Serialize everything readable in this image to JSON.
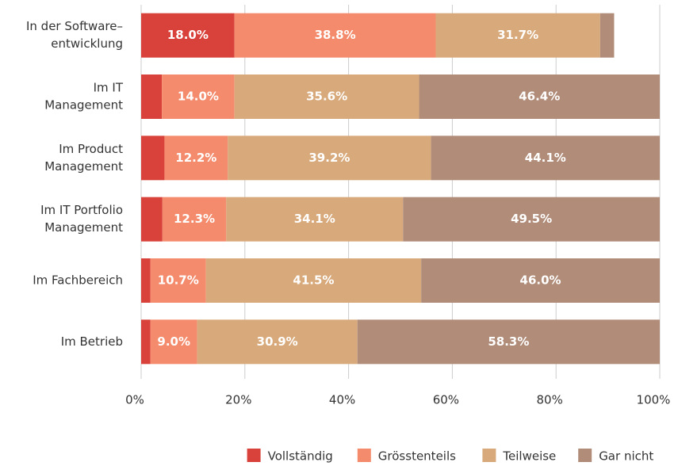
{
  "chart_data": {
    "type": "stacked-barh",
    "categories": [
      [
        "In der Software–",
        "entwicklung"
      ],
      [
        "Im IT",
        "Management"
      ],
      [
        "Im Product",
        "Management"
      ],
      [
        "Im IT Portfolio",
        "Management"
      ],
      [
        "Im Fachbereich"
      ],
      [
        "Im Betrieb"
      ]
    ],
    "series": [
      {
        "name": "Vollständig",
        "color": "#d9423a",
        "values": [
          18.0,
          4.0,
          4.5,
          4.1,
          1.8,
          1.8
        ],
        "value_labels": [
          "18.0%",
          null,
          null,
          null,
          null,
          null
        ]
      },
      {
        "name": "Grösstenteils",
        "color": "#f48b6c",
        "values": [
          38.8,
          14.0,
          12.2,
          12.3,
          10.7,
          9.0
        ],
        "value_labels": [
          "38.8%",
          "14.0%",
          "12.2%",
          "12.3%",
          "10.7%",
          "9.0%"
        ]
      },
      {
        "name": "Teilweise",
        "color": "#d8a97a",
        "values": [
          31.7,
          35.6,
          39.2,
          34.1,
          41.5,
          30.9
        ],
        "value_labels": [
          "31.7%",
          "35.6%",
          "39.2%",
          "34.1%",
          "41.5%",
          "30.9%"
        ]
      },
      {
        "name": "Gar nicht",
        "color": "#b08c79",
        "values": [
          2.7,
          46.4,
          44.1,
          49.5,
          46.0,
          58.3
        ],
        "value_labels": [
          null,
          "46.4%",
          "44.1%",
          "49.5%",
          "46.0%",
          "58.3%"
        ]
      }
    ],
    "xlim": [
      0,
      100
    ],
    "xticks": [
      {
        "value": 0,
        "label": "0%"
      },
      {
        "value": 20,
        "label": "20%"
      },
      {
        "value": 40,
        "label": "40%"
      },
      {
        "value": 60,
        "label": "60%"
      },
      {
        "value": 80,
        "label": "80%"
      },
      {
        "value": 100,
        "label": "100%"
      }
    ],
    "grid": true,
    "legend": "bottom-right"
  }
}
